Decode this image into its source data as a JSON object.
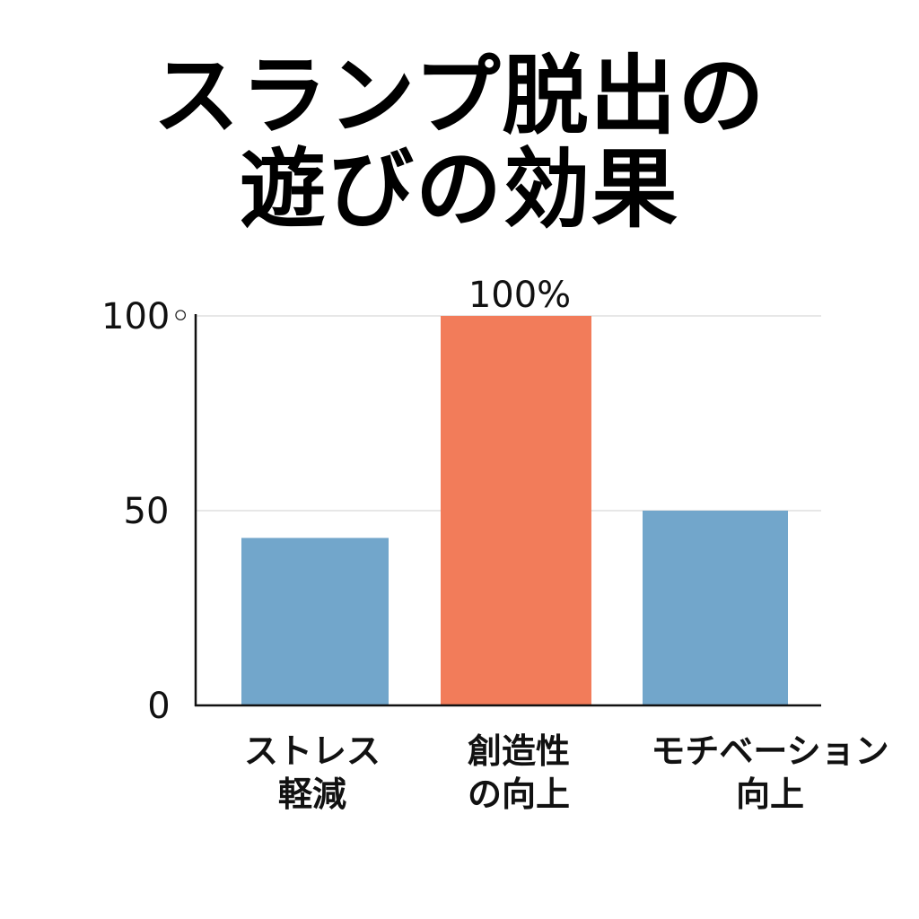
{
  "chart_data": {
    "type": "bar",
    "title_lines": [
      "スランプ脱出の",
      "遊びの効果"
    ],
    "categories": [
      [
        "ストレス",
        "軽減"
      ],
      [
        "創造性",
        "の向上"
      ],
      [
        "モチベーション",
        "向上"
      ]
    ],
    "values": [
      43,
      100,
      50
    ],
    "colors": [
      "#72a6cb",
      "#f27c5a",
      "#72a6cb"
    ],
    "data_labels": [
      "",
      "100%",
      ""
    ],
    "ylim": [
      0,
      100
    ],
    "yticks": [
      {
        "value": 0,
        "label": "0"
      },
      {
        "value": 50,
        "label": "50"
      },
      {
        "value": 100,
        "label": "100◦"
      }
    ],
    "grid": true,
    "xlabel": "",
    "ylabel": ""
  }
}
